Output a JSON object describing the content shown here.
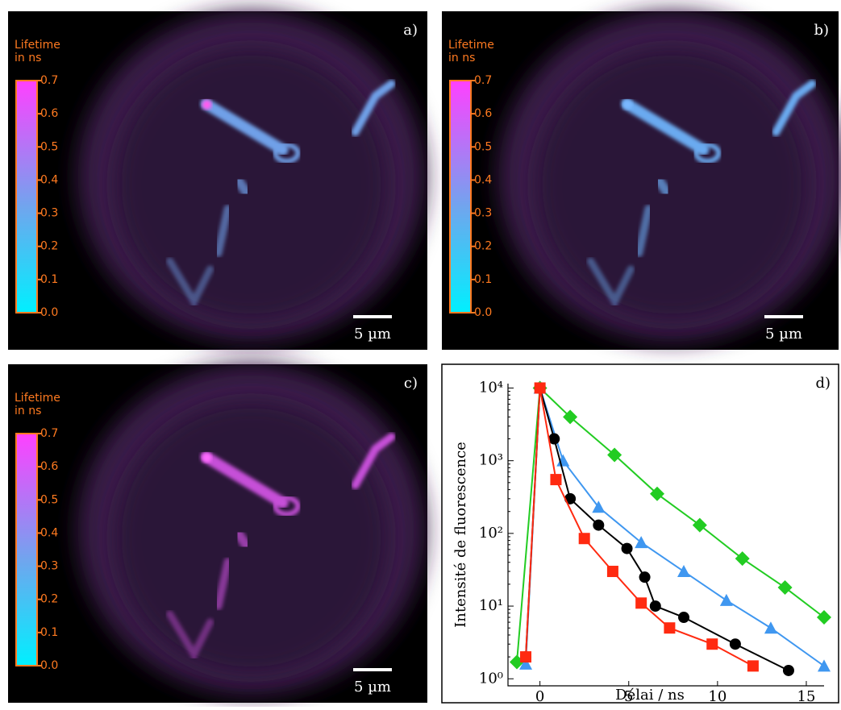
{
  "panels": [
    {
      "label": "a)",
      "colorbar_title": [
        "Lifetime",
        "in ns"
      ],
      "tint": "#6fa0e8",
      "tip": "#ff5cf0",
      "colorbar_ticks": [
        {
          "value": 0,
          "label": "0.0"
        },
        {
          "value": 0.1,
          "label": "0.1"
        },
        {
          "value": 0.2,
          "label": "0.2"
        },
        {
          "value": 0.3,
          "label": "0.3"
        },
        {
          "value": 0.4,
          "label": "0.4"
        },
        {
          "value": 0.5,
          "label": "0.5"
        },
        {
          "value": 0.6,
          "label": "0.6"
        },
        {
          "value": 0.7,
          "label": "0.7"
        }
      ],
      "scale_bar": "5 µm"
    },
    {
      "label": "b)",
      "colorbar_title": [
        "Lifetime",
        "in ns"
      ],
      "tint": "#6aaaf0",
      "tip": "#7ab8ff",
      "colorbar_ticks": [
        {
          "value": 0,
          "label": "0.0"
        },
        {
          "value": 0.1,
          "label": "0.1"
        },
        {
          "value": 0.2,
          "label": "0.2"
        },
        {
          "value": 0.3,
          "label": "0.3"
        },
        {
          "value": 0.4,
          "label": "0.4"
        },
        {
          "value": 0.5,
          "label": "0.5"
        },
        {
          "value": 0.6,
          "label": "0.6"
        },
        {
          "value": 0.7,
          "label": "0.7"
        }
      ],
      "scale_bar": "5 µm"
    },
    {
      "label": "c)",
      "colorbar_title": [
        "Lifetime",
        "in ns"
      ],
      "tint": "#c650d8",
      "tip": "#ff6cff",
      "colorbar_ticks": [
        {
          "value": 0,
          "label": "0.0"
        },
        {
          "value": 0.1,
          "label": "0.1"
        },
        {
          "value": 0.2,
          "label": "0.2"
        },
        {
          "value": 0.3,
          "label": "0.3"
        },
        {
          "value": 0.4,
          "label": "0.4"
        },
        {
          "value": 0.5,
          "label": "0.5"
        },
        {
          "value": 0.6,
          "label": "0.6"
        },
        {
          "value": 0.7,
          "label": "0.7"
        }
      ],
      "scale_bar": "5 µm"
    }
  ],
  "chart_data": {
    "type": "line",
    "panel_label": "d)",
    "x_label": "Délai / ns",
    "y_label": "Intensité de fluorescence",
    "log_y": true,
    "xlim": [
      -1.8,
      16
    ],
    "ylim": [
      0.8,
      11500
    ],
    "xticks": [
      0,
      5,
      10,
      15
    ],
    "yticks": [
      {
        "value": 1,
        "label": "10⁰"
      },
      {
        "value": 10,
        "label": "10¹"
      },
      {
        "value": 100,
        "label": "10²"
      },
      {
        "value": 1000,
        "label": "10³"
      },
      {
        "value": 10000,
        "label": "10⁴"
      }
    ],
    "series": [
      {
        "marker": "diamond",
        "color": "#22cc22",
        "x": [
          -1.3,
          0,
          1.7,
          4.2,
          6.6,
          9.0,
          11.4,
          13.8,
          16
        ],
        "values": [
          1.7,
          10000,
          4000,
          1200,
          350,
          130,
          45,
          18,
          7
        ]
      },
      {
        "marker": "triangle",
        "color": "#3f97f0",
        "x": [
          -0.8,
          0,
          1.3,
          3.3,
          5.7,
          8.1,
          10.5,
          13,
          16
        ],
        "values": [
          1.6,
          10000,
          1000,
          230,
          75,
          30,
          12,
          5,
          1.5
        ]
      },
      {
        "marker": "circle",
        "color": "#000000",
        "x": [
          -0.8,
          0,
          0.8,
          1.7,
          3.3,
          4.9,
          5.9,
          6.5,
          8.1,
          11,
          14
        ],
        "values": [
          2,
          10000,
          2000,
          300,
          130,
          62,
          25,
          10,
          7,
          3,
          1.3
        ]
      },
      {
        "marker": "square",
        "color": "#ff2a10",
        "x": [
          -0.8,
          0,
          0.9,
          2.5,
          4.1,
          5.7,
          7.3,
          9.7,
          12
        ],
        "values": [
          2,
          10000,
          550,
          85,
          30,
          11,
          5,
          3,
          1.5
        ]
      }
    ]
  }
}
